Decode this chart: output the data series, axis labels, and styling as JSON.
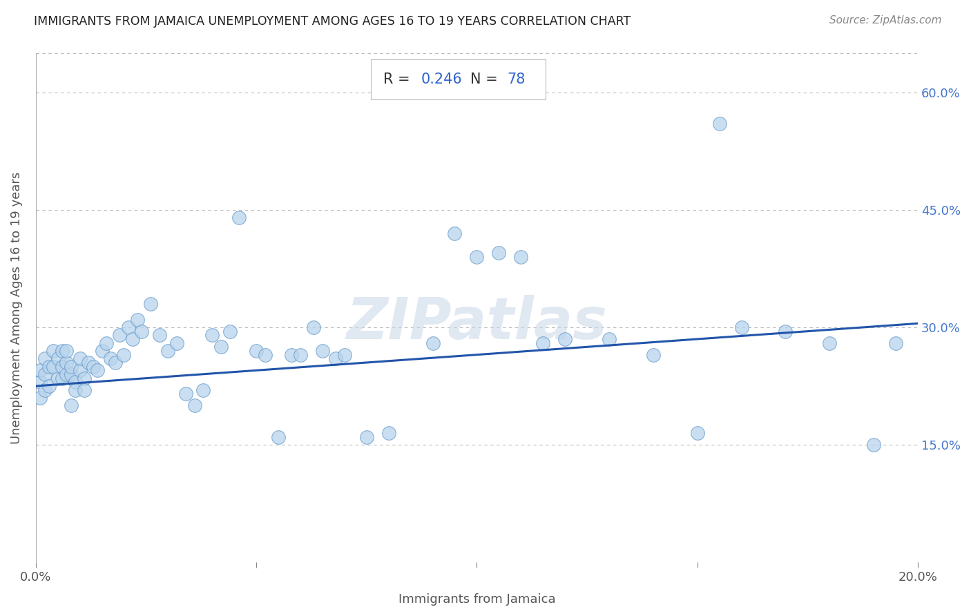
{
  "title": "IMMIGRANTS FROM JAMAICA UNEMPLOYMENT AMONG AGES 16 TO 19 YEARS CORRELATION CHART",
  "source": "Source: ZipAtlas.com",
  "xlabel": "Immigrants from Jamaica",
  "ylabel": "Unemployment Among Ages 16 to 19 years",
  "R": 0.246,
  "N": 78,
  "xlim": [
    0.0,
    0.2
  ],
  "ylim": [
    0.0,
    0.65
  ],
  "scatter_color": "#b8d4ec",
  "scatter_edgecolor": "#6699cc",
  "line_color": "#2255aa",
  "background_color": "#ffffff",
  "grid_color": "#bbbbbb",
  "title_color": "#222222",
  "annotation_text_color": "#333333",
  "annotation_value_color": "#3366cc",
  "line_x0": 0.0,
  "line_y0": 0.225,
  "line_x1": 0.2,
  "line_y1": 0.305,
  "scatter_x": [
    0.001,
    0.001,
    0.001,
    0.002,
    0.002,
    0.002,
    0.003,
    0.003,
    0.004,
    0.004,
    0.005,
    0.005,
    0.006,
    0.006,
    0.006,
    0.007,
    0.007,
    0.007,
    0.008,
    0.008,
    0.008,
    0.009,
    0.009,
    0.01,
    0.01,
    0.011,
    0.011,
    0.012,
    0.013,
    0.014,
    0.015,
    0.016,
    0.017,
    0.018,
    0.019,
    0.02,
    0.021,
    0.022,
    0.023,
    0.024,
    0.026,
    0.028,
    0.03,
    0.032,
    0.034,
    0.036,
    0.038,
    0.04,
    0.042,
    0.044,
    0.046,
    0.05,
    0.052,
    0.055,
    0.058,
    0.06,
    0.063,
    0.065,
    0.068,
    0.07,
    0.075,
    0.08,
    0.09,
    0.095,
    0.1,
    0.105,
    0.11,
    0.115,
    0.12,
    0.13,
    0.14,
    0.15,
    0.155,
    0.16,
    0.17,
    0.18,
    0.19,
    0.195
  ],
  "scatter_y": [
    0.23,
    0.245,
    0.21,
    0.24,
    0.26,
    0.22,
    0.25,
    0.225,
    0.25,
    0.27,
    0.235,
    0.26,
    0.235,
    0.25,
    0.27,
    0.24,
    0.255,
    0.27,
    0.24,
    0.25,
    0.2,
    0.23,
    0.22,
    0.245,
    0.26,
    0.235,
    0.22,
    0.255,
    0.25,
    0.245,
    0.27,
    0.28,
    0.26,
    0.255,
    0.29,
    0.265,
    0.3,
    0.285,
    0.31,
    0.295,
    0.33,
    0.29,
    0.27,
    0.28,
    0.215,
    0.2,
    0.22,
    0.29,
    0.275,
    0.295,
    0.44,
    0.27,
    0.265,
    0.16,
    0.265,
    0.265,
    0.3,
    0.27,
    0.26,
    0.265,
    0.16,
    0.165,
    0.28,
    0.42,
    0.39,
    0.395,
    0.39,
    0.28,
    0.285,
    0.285,
    0.265,
    0.165,
    0.56,
    0.3,
    0.295,
    0.28,
    0.15,
    0.28
  ]
}
